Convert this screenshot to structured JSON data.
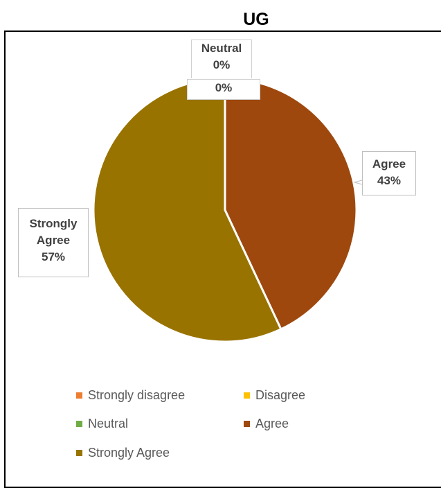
{
  "chart_data": {
    "type": "pie",
    "title": "UG",
    "categories": [
      "Strongly disagree",
      "Disagree",
      "Neutral",
      "Agree",
      "Strongly Agree"
    ],
    "values": [
      0,
      0,
      0,
      43,
      57
    ],
    "colors": [
      "#ED7D31",
      "#FFC000",
      "#70AD47",
      "#9E480E",
      "#997300"
    ],
    "legend_position": "bottom",
    "data_labels": {
      "neutral": {
        "name": "Neutral",
        "pct": "0%"
      },
      "zero_extra": {
        "pct": "0%"
      },
      "agree": {
        "name": "Agree",
        "pct": "43%"
      },
      "strongly_agree": {
        "name_line1": "Strongly",
        "name_line2": "Agree",
        "pct": "57%"
      }
    }
  }
}
